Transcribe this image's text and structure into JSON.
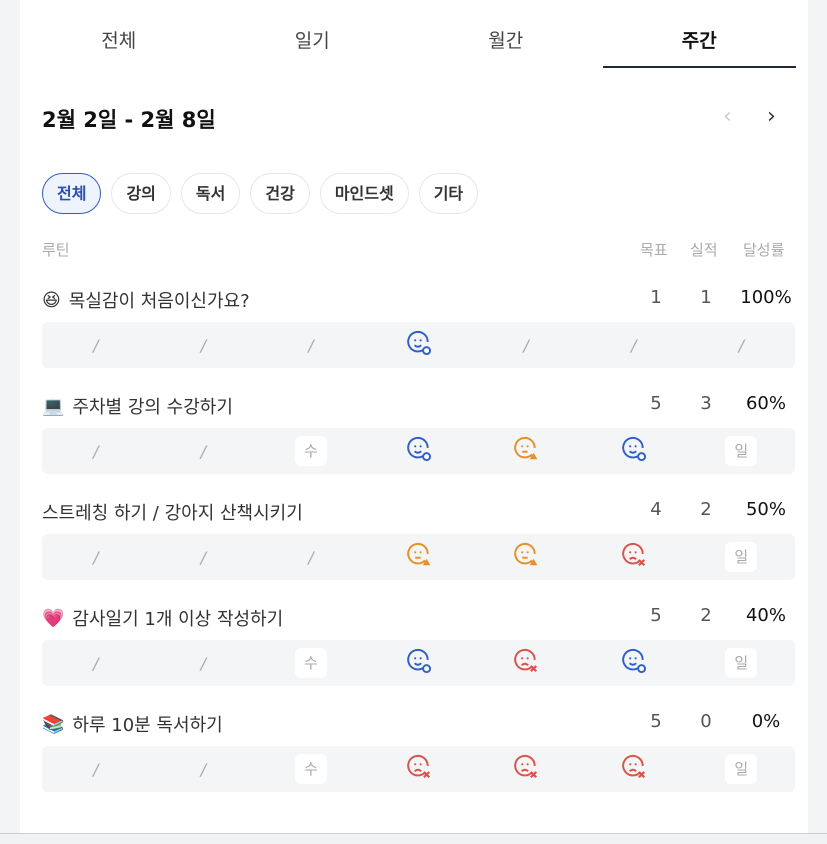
{
  "tabs": [
    {
      "label": "전체"
    },
    {
      "label": "일기"
    },
    {
      "label": "월간"
    },
    {
      "label": "주간",
      "active": true
    }
  ],
  "date_range": "2월 2일 - 2월 8일",
  "nav": {
    "prev": "‹",
    "next": "›"
  },
  "chips": [
    {
      "label": "전체",
      "active": true
    },
    {
      "label": "강의"
    },
    {
      "label": "독서"
    },
    {
      "label": "건강"
    },
    {
      "label": "마인드셋"
    },
    {
      "label": "기타"
    }
  ],
  "headers": {
    "routine": "루틴",
    "goal": "목표",
    "actual": "실적",
    "rate": "달성률"
  },
  "colors": {
    "good": "#2f5fc9",
    "warn": "#e5902a",
    "bad": "#d9534a"
  },
  "routines": [
    {
      "emoji": "😆",
      "name": "목실감이 처음이신가요?",
      "goal": "1",
      "actual": "1",
      "rate": "100%",
      "days": [
        "slash",
        "slash",
        "slash",
        "good",
        "slash",
        "slash",
        "slash"
      ]
    },
    {
      "emoji": "💻",
      "name": "주차별 강의 수강하기",
      "goal": "5",
      "actual": "3",
      "rate": "60%",
      "days": [
        "slash",
        "slash",
        "수",
        "good",
        "warn",
        "good",
        "일"
      ]
    },
    {
      "emoji": "",
      "name": "스트레칭 하기 / 강아지 산책시키기",
      "goal": "4",
      "actual": "2",
      "rate": "50%",
      "days": [
        "slash",
        "slash",
        "slash",
        "warn",
        "warn",
        "bad",
        "일"
      ]
    },
    {
      "emoji": "💗",
      "name": "감사일기 1개 이상 작성하기",
      "goal": "5",
      "actual": "2",
      "rate": "40%",
      "days": [
        "slash",
        "slash",
        "수",
        "good",
        "bad",
        "good",
        "일"
      ]
    },
    {
      "emoji": "📚",
      "name": "하루 10분 독서하기",
      "goal": "5",
      "actual": "0",
      "rate": "0%",
      "days": [
        "slash",
        "slash",
        "수",
        "bad",
        "bad",
        "bad",
        "일"
      ]
    }
  ]
}
